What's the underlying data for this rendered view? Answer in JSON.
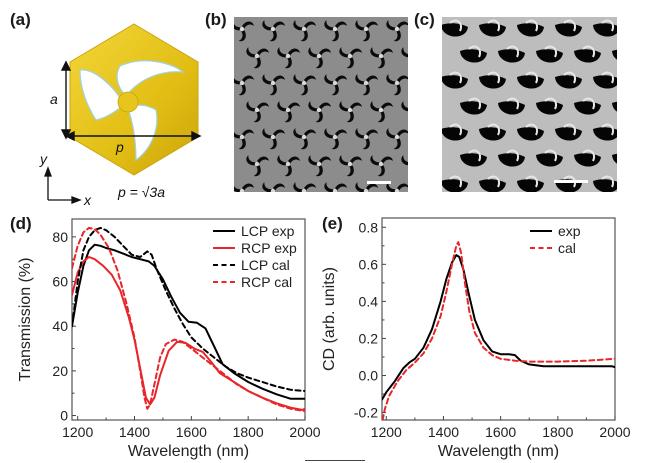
{
  "panels": {
    "a": {
      "label": "(a)",
      "dimension_a": "a",
      "dimension_p": "p",
      "axis_y": "y",
      "axis_x": "x",
      "relation": "p = √3a",
      "colors": {
        "gold": "#e6c21a",
        "gold_dark": "#c9a40c",
        "hole": "#ffffff"
      }
    },
    "b": {
      "label": "(b)",
      "description": "SEM top view of hexagonal array of three-arm pinwheel holes"
    },
    "c": {
      "label": "(c)",
      "description": "SEM tilted view of hexagonal array of pinwheel holes"
    },
    "d": {
      "label": "(d)"
    },
    "e": {
      "label": "(e)"
    }
  },
  "chart_data": [
    {
      "id": "d",
      "type": "line",
      "title": "",
      "xlabel": "Wavelength (nm)",
      "ylabel": "Transmission (%)",
      "xlim": [
        1180,
        2000
      ],
      "ylim": [
        -2,
        88
      ],
      "xticks": [
        1200,
        1400,
        1600,
        1800,
        2000
      ],
      "xtick_labels": [
        "1200",
        "1400",
        "1600",
        "1800",
        "2000"
      ],
      "yticks": [
        0,
        20,
        40,
        60,
        80
      ],
      "ytick_labels": [
        "0",
        "20",
        "40",
        "60",
        "80"
      ],
      "grid": false,
      "legend_position": "top-right",
      "series": [
        {
          "name": "LCP exp",
          "color": "#000000",
          "dash": "solid",
          "x": [
            1180,
            1200,
            1220,
            1240,
            1260,
            1280,
            1300,
            1330,
            1360,
            1390,
            1420,
            1450,
            1470,
            1500,
            1530,
            1560,
            1590,
            1620,
            1650,
            1680,
            1710,
            1750,
            1800,
            1850,
            1900,
            1950,
            2000
          ],
          "y": [
            40,
            55,
            67,
            74,
            76.5,
            76,
            75,
            74,
            72.5,
            71,
            70,
            69,
            67,
            61,
            53,
            46,
            42,
            41.5,
            39,
            31,
            23,
            19,
            15,
            12,
            9.5,
            7.5,
            7.5
          ]
        },
        {
          "name": "RCP exp",
          "color": "#e8262a",
          "dash": "solid",
          "x": [
            1180,
            1200,
            1220,
            1240,
            1260,
            1290,
            1320,
            1350,
            1380,
            1400,
            1420,
            1440,
            1455,
            1470,
            1490,
            1520,
            1550,
            1580,
            1610,
            1640,
            1670,
            1700,
            1750,
            1800,
            1850,
            1900,
            1950,
            1990,
            2000
          ],
          "y": [
            54,
            64,
            69,
            71,
            70,
            67,
            63,
            56,
            44,
            34,
            21,
            8,
            5,
            8,
            18,
            29,
            33,
            32.5,
            30,
            28.5,
            24,
            19,
            15,
            11,
            8,
            5.5,
            3.5,
            2.5,
            3
          ]
        },
        {
          "name": "LCP cal",
          "color": "#000000",
          "dash": "dashed",
          "x": [
            1180,
            1200,
            1220,
            1240,
            1260,
            1280,
            1300,
            1330,
            1360,
            1390,
            1420,
            1445,
            1460,
            1480,
            1510,
            1540,
            1570,
            1600,
            1640,
            1680,
            1720,
            1760,
            1800,
            1850,
            1900,
            1950,
            2000
          ],
          "y": [
            40,
            60,
            74,
            80,
            83,
            84,
            83,
            80,
            76,
            72,
            71,
            73.5,
            72,
            65,
            56,
            48,
            41,
            35,
            30,
            26,
            22,
            19,
            17,
            15,
            13,
            11.5,
            11
          ]
        },
        {
          "name": "RCP cal",
          "color": "#e8262a",
          "dash": "dashed",
          "x": [
            1180,
            1200,
            1220,
            1240,
            1260,
            1280,
            1310,
            1340,
            1370,
            1400,
            1420,
            1435,
            1445,
            1455,
            1470,
            1490,
            1510,
            1540,
            1570,
            1600,
            1640,
            1680,
            1720,
            1760,
            1800,
            1850,
            1900,
            1950,
            2000
          ],
          "y": [
            66,
            76,
            82,
            84,
            83.5,
            81,
            75,
            65,
            51,
            35,
            20,
            8,
            3,
            5,
            14,
            26,
            32,
            34,
            33,
            30,
            26,
            22,
            18,
            14,
            11,
            8,
            5,
            3,
            2
          ]
        }
      ]
    },
    {
      "id": "e",
      "type": "line",
      "title": "",
      "xlabel": "Wavelength (nm)",
      "ylabel": "CD (arb. units)",
      "xlim": [
        1185,
        2000
      ],
      "ylim": [
        -0.24,
        0.85
      ],
      "xticks": [
        1200,
        1400,
        1600,
        1800,
        2000
      ],
      "xtick_labels": [
        "1200",
        "1400",
        "1600",
        "1800",
        "2000"
      ],
      "yticks": [
        -0.2,
        0.0,
        0.2,
        0.4,
        0.6,
        0.8
      ],
      "ytick_labels": [
        "-0.2",
        "0.0",
        "0.2",
        "0.4",
        "0.6",
        "0.8"
      ],
      "grid": false,
      "legend_position": "top-right",
      "series": [
        {
          "name": "exp",
          "color": "#000000",
          "dash": "solid",
          "x": [
            1185,
            1200,
            1230,
            1260,
            1280,
            1300,
            1330,
            1360,
            1390,
            1410,
            1430,
            1445,
            1455,
            1470,
            1490,
            1510,
            1540,
            1570,
            1600,
            1630,
            1650,
            1670,
            1700,
            1750,
            1800,
            1900,
            1990,
            2000
          ],
          "y": [
            -0.13,
            -0.09,
            -0.03,
            0.04,
            0.07,
            0.09,
            0.15,
            0.25,
            0.4,
            0.52,
            0.61,
            0.65,
            0.64,
            0.57,
            0.43,
            0.3,
            0.19,
            0.13,
            0.115,
            0.115,
            0.11,
            0.08,
            0.06,
            0.05,
            0.05,
            0.05,
            0.05,
            0.045
          ]
        },
        {
          "name": "cal",
          "color": "#e8262a",
          "dash": "dashed",
          "x": [
            1187,
            1195,
            1210,
            1240,
            1270,
            1300,
            1330,
            1360,
            1390,
            1410,
            1430,
            1445,
            1452,
            1462,
            1475,
            1490,
            1510,
            1540,
            1570,
            1600,
            1650,
            1700,
            1800,
            1900,
            2000
          ],
          "y": [
            -0.24,
            -0.18,
            -0.11,
            -0.03,
            0.03,
            0.07,
            0.12,
            0.2,
            0.32,
            0.45,
            0.6,
            0.7,
            0.72,
            0.66,
            0.5,
            0.35,
            0.23,
            0.15,
            0.11,
            0.09,
            0.08,
            0.075,
            0.075,
            0.08,
            0.09
          ]
        }
      ]
    }
  ]
}
